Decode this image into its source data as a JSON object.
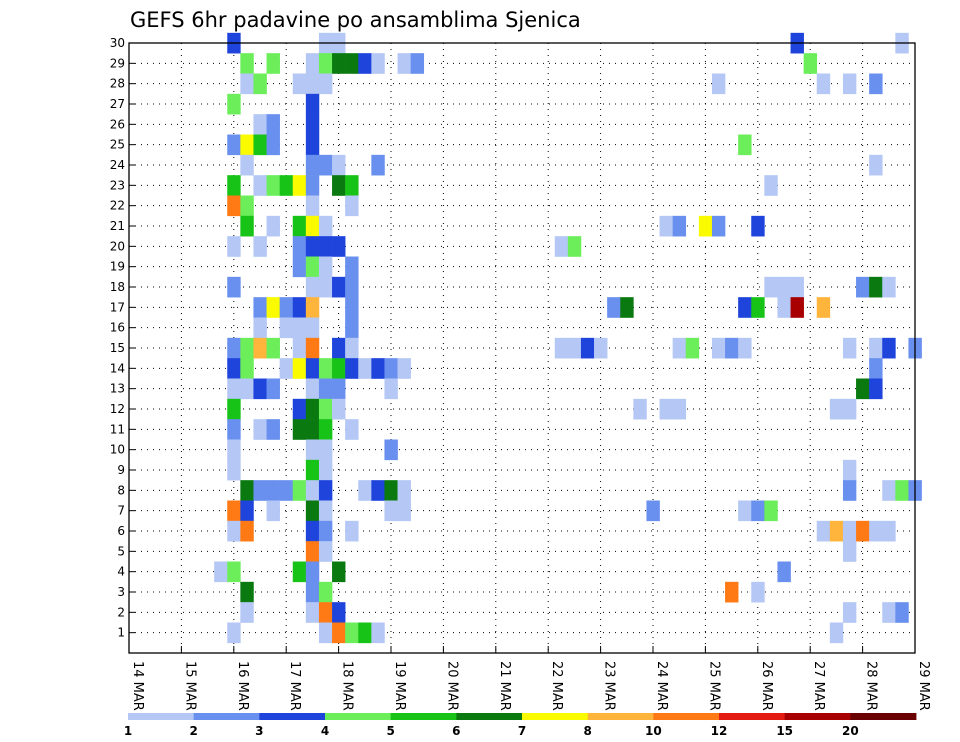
{
  "chart_data": {
    "type": "heatmap",
    "title": "GEFS 6hr padavine po ansamblima Sjenica",
    "x_tick_labels": [
      "14 MAR",
      "15 MAR",
      "16 MAR",
      "17 MAR",
      "18 MAR",
      "19 MAR",
      "20 MAR",
      "21 MAR",
      "22 MAR",
      "23 MAR",
      "24 MAR",
      "25 MAR",
      "26 MAR",
      "27 MAR",
      "28 MAR",
      "29 MAR"
    ],
    "y_tick_labels": [
      "1",
      "2",
      "3",
      "4",
      "5",
      "6",
      "7",
      "8",
      "9",
      "10",
      "11",
      "12",
      "13",
      "14",
      "15",
      "16",
      "17",
      "18",
      "19",
      "20",
      "21",
      "22",
      "23",
      "24",
      "25",
      "26",
      "27",
      "28",
      "29",
      "30"
    ],
    "x_range_steps": [
      0,
      60
    ],
    "y_range": [
      0,
      30
    ],
    "step_hours": 6,
    "grid": true,
    "colorbar": {
      "labels": [
        "1",
        "2",
        "3",
        "4",
        "5",
        "6",
        "7",
        "8",
        "10",
        "12",
        "15",
        "20"
      ],
      "colors": [
        "#b4c7f5",
        "#6990ee",
        "#1e44dc",
        "#6bee5a",
        "#17c317",
        "#0a7a10",
        "#fbfb00",
        "#ffb43c",
        "#ff7a14",
        "#e21c12",
        "#a80000",
        "#6a0000"
      ]
    },
    "cells": [
      {
        "y": 30,
        "x": [
          [
            8,
            3
          ],
          [
            15,
            1
          ],
          [
            16,
            1
          ],
          [
            51,
            3
          ],
          [
            59,
            1
          ]
        ]
      },
      {
        "y": 29,
        "x": [
          [
            9,
            4
          ],
          [
            11,
            4
          ],
          [
            14,
            1
          ],
          [
            15,
            4
          ],
          [
            16,
            6
          ],
          [
            17,
            6
          ],
          [
            18,
            3
          ],
          [
            19,
            1
          ],
          [
            21,
            1
          ],
          [
            22,
            2
          ],
          [
            52,
            4
          ]
        ]
      },
      {
        "y": 28,
        "x": [
          [
            9,
            1
          ],
          [
            10,
            4
          ],
          [
            13,
            1
          ],
          [
            14,
            1
          ],
          [
            15,
            1
          ],
          [
            45,
            1
          ],
          [
            53,
            1
          ],
          [
            55,
            1
          ],
          [
            57,
            2
          ]
        ]
      },
      {
        "y": 27,
        "x": [
          [
            8,
            4
          ],
          [
            14,
            3
          ]
        ]
      },
      {
        "y": 26,
        "x": [
          [
            10,
            1
          ],
          [
            11,
            2
          ],
          [
            14,
            3
          ]
        ]
      },
      {
        "y": 25,
        "x": [
          [
            8,
            2
          ],
          [
            9,
            7
          ],
          [
            10,
            5
          ],
          [
            11,
            2
          ],
          [
            14,
            3
          ],
          [
            47,
            4
          ]
        ]
      },
      {
        "y": 24,
        "x": [
          [
            9,
            1
          ],
          [
            14,
            2
          ],
          [
            15,
            2
          ],
          [
            16,
            1
          ],
          [
            19,
            2
          ],
          [
            57,
            1
          ]
        ]
      },
      {
        "y": 23,
        "x": [
          [
            8,
            5
          ],
          [
            10,
            1
          ],
          [
            11,
            4
          ],
          [
            12,
            5
          ],
          [
            13,
            7
          ],
          [
            14,
            2
          ],
          [
            16,
            6
          ],
          [
            17,
            5
          ],
          [
            49,
            1
          ]
        ]
      },
      {
        "y": 22,
        "x": [
          [
            8,
            9
          ],
          [
            9,
            4
          ],
          [
            14,
            1
          ],
          [
            17,
            1
          ]
        ]
      },
      {
        "y": 21,
        "x": [
          [
            9,
            5
          ],
          [
            11,
            1
          ],
          [
            13,
            5
          ],
          [
            14,
            7
          ],
          [
            15,
            1
          ],
          [
            41,
            1
          ],
          [
            42,
            2
          ],
          [
            44,
            7
          ],
          [
            45,
            2
          ],
          [
            48,
            3
          ]
        ]
      },
      {
        "y": 20,
        "x": [
          [
            8,
            1
          ],
          [
            10,
            1
          ],
          [
            13,
            2
          ],
          [
            14,
            3
          ],
          [
            15,
            3
          ],
          [
            16,
            3
          ],
          [
            33,
            1
          ],
          [
            34,
            4
          ]
        ]
      },
      {
        "y": 19,
        "x": [
          [
            13,
            2
          ],
          [
            14,
            4
          ],
          [
            15,
            1
          ],
          [
            17,
            2
          ]
        ]
      },
      {
        "y": 18,
        "x": [
          [
            8,
            2
          ],
          [
            14,
            1
          ],
          [
            15,
            1
          ],
          [
            16,
            3
          ],
          [
            17,
            2
          ],
          [
            49,
            1
          ],
          [
            50,
            1
          ],
          [
            51,
            1
          ],
          [
            56,
            2
          ],
          [
            57,
            6
          ],
          [
            58,
            1
          ]
        ]
      },
      {
        "y": 17,
        "x": [
          [
            10,
            2
          ],
          [
            11,
            7
          ],
          [
            12,
            2
          ],
          [
            13,
            3
          ],
          [
            14,
            8
          ],
          [
            17,
            2
          ],
          [
            37,
            2
          ],
          [
            38,
            6
          ],
          [
            47,
            3
          ],
          [
            48,
            5
          ],
          [
            50,
            1
          ],
          [
            51,
            11
          ],
          [
            53,
            8
          ]
        ]
      },
      {
        "y": 16,
        "x": [
          [
            10,
            1
          ],
          [
            12,
            1
          ],
          [
            13,
            1
          ],
          [
            14,
            1
          ],
          [
            17,
            2
          ]
        ]
      },
      {
        "y": 15,
        "x": [
          [
            8,
            2
          ],
          [
            9,
            4
          ],
          [
            10,
            8
          ],
          [
            11,
            4
          ],
          [
            13,
            1
          ],
          [
            14,
            9
          ],
          [
            16,
            3
          ],
          [
            17,
            1
          ],
          [
            33,
            1
          ],
          [
            34,
            1
          ],
          [
            35,
            3
          ],
          [
            36,
            1
          ],
          [
            42,
            1
          ],
          [
            43,
            4
          ],
          [
            45,
            1
          ],
          [
            46,
            2
          ],
          [
            47,
            1
          ],
          [
            55,
            1
          ],
          [
            57,
            1
          ],
          [
            58,
            3
          ],
          [
            60,
            2
          ]
        ]
      },
      {
        "y": 14,
        "x": [
          [
            8,
            3
          ],
          [
            9,
            4
          ],
          [
            12,
            1
          ],
          [
            13,
            7
          ],
          [
            14,
            3
          ],
          [
            15,
            4
          ],
          [
            16,
            5
          ],
          [
            17,
            3
          ],
          [
            18,
            1
          ],
          [
            19,
            3
          ],
          [
            20,
            2
          ],
          [
            21,
            1
          ],
          [
            57,
            2
          ]
        ]
      },
      {
        "y": 13,
        "x": [
          [
            8,
            1
          ],
          [
            9,
            1
          ],
          [
            10,
            3
          ],
          [
            11,
            2
          ],
          [
            14,
            1
          ],
          [
            15,
            2
          ],
          [
            16,
            2
          ],
          [
            20,
            1
          ],
          [
            56,
            6
          ],
          [
            57,
            3
          ]
        ]
      },
      {
        "y": 12,
        "x": [
          [
            8,
            5
          ],
          [
            13,
            3
          ],
          [
            14,
            6
          ],
          [
            15,
            4
          ],
          [
            16,
            1
          ],
          [
            39,
            1
          ],
          [
            41,
            1
          ],
          [
            42,
            1
          ],
          [
            54,
            1
          ],
          [
            55,
            1
          ]
        ]
      },
      {
        "y": 11,
        "x": [
          [
            8,
            2
          ],
          [
            10,
            1
          ],
          [
            11,
            2
          ],
          [
            13,
            6
          ],
          [
            14,
            6
          ],
          [
            15,
            5
          ],
          [
            17,
            1
          ]
        ]
      },
      {
        "y": 10,
        "x": [
          [
            8,
            1
          ],
          [
            14,
            1
          ],
          [
            15,
            1
          ],
          [
            20,
            2
          ]
        ]
      },
      {
        "y": 9,
        "x": [
          [
            8,
            1
          ],
          [
            14,
            5
          ],
          [
            15,
            1
          ],
          [
            55,
            1
          ]
        ]
      },
      {
        "y": 8,
        "x": [
          [
            9,
            6
          ],
          [
            10,
            2
          ],
          [
            11,
            2
          ],
          [
            12,
            2
          ],
          [
            13,
            4
          ],
          [
            14,
            1
          ],
          [
            15,
            3
          ],
          [
            18,
            1
          ],
          [
            19,
            3
          ],
          [
            20,
            6
          ],
          [
            21,
            1
          ],
          [
            55,
            2
          ],
          [
            58,
            1
          ],
          [
            59,
            4
          ],
          [
            60,
            2
          ]
        ]
      },
      {
        "y": 7,
        "x": [
          [
            8,
            9
          ],
          [
            9,
            3
          ],
          [
            11,
            1
          ],
          [
            14,
            6
          ],
          [
            15,
            1
          ],
          [
            20,
            1
          ],
          [
            21,
            1
          ],
          [
            40,
            2
          ],
          [
            47,
            1
          ],
          [
            48,
            2
          ],
          [
            49,
            4
          ]
        ]
      },
      {
        "y": 6,
        "x": [
          [
            8,
            1
          ],
          [
            9,
            9
          ],
          [
            14,
            3
          ],
          [
            15,
            2
          ],
          [
            17,
            1
          ],
          [
            53,
            1
          ],
          [
            54,
            8
          ],
          [
            55,
            1
          ],
          [
            56,
            9
          ],
          [
            57,
            1
          ],
          [
            58,
            1
          ]
        ]
      },
      {
        "y": 5,
        "x": [
          [
            14,
            9
          ],
          [
            15,
            1
          ],
          [
            55,
            1
          ]
        ]
      },
      {
        "y": 4,
        "x": [
          [
            7,
            1
          ],
          [
            8,
            4
          ],
          [
            13,
            5
          ],
          [
            14,
            2
          ],
          [
            16,
            6
          ],
          [
            50,
            2
          ]
        ]
      },
      {
        "y": 3,
        "x": [
          [
            9,
            6
          ],
          [
            14,
            2
          ],
          [
            15,
            4
          ],
          [
            46,
            9
          ],
          [
            48,
            1
          ]
        ]
      },
      {
        "y": 2,
        "x": [
          [
            9,
            1
          ],
          [
            14,
            1
          ],
          [
            15,
            9
          ],
          [
            16,
            3
          ],
          [
            55,
            1
          ],
          [
            58,
            1
          ],
          [
            59,
            2
          ]
        ]
      },
      {
        "y": 1,
        "x": [
          [
            8,
            1
          ],
          [
            15,
            1
          ],
          [
            16,
            9
          ],
          [
            17,
            4
          ],
          [
            18,
            5
          ],
          [
            19,
            1
          ],
          [
            54,
            1
          ]
        ]
      }
    ]
  }
}
